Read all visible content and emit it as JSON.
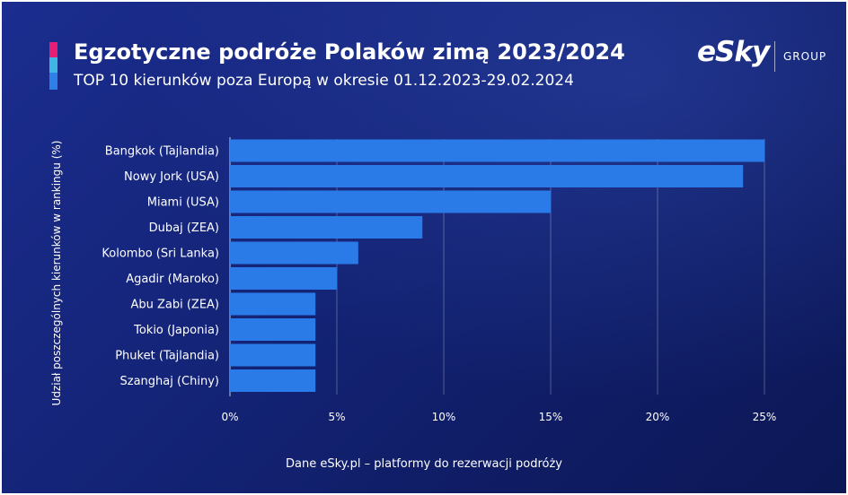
{
  "header": {
    "title": "Egzotyczne podróże Polaków zimą 2023/2024",
    "subtitle": "TOP 10 kierunków poza Europą w okresie 01.12.2023-29.02.2024"
  },
  "logo": {
    "brand": "eSky",
    "group": "GROUP"
  },
  "footer": {
    "source": "Dane eSky.pl – platformy do rezerwacji podróży"
  },
  "colors": {
    "bar": "#2a7ae8",
    "accent_pink": "#e91e73",
    "accent_cyan": "#3fb7e3",
    "accent_blue": "#2f7fe8",
    "background": "#152679"
  },
  "chart_data": {
    "type": "bar",
    "orientation": "horizontal",
    "title": "Egzotyczne podróże Polaków zimą 2023/2024",
    "subtitle": "TOP 10 kierunków poza Europą w okresie 01.12.2023-29.02.2024",
    "xlabel": "",
    "ylabel": "Udział poszczególnych kierunków w rankingu (%)",
    "categories": [
      "Bangkok (Tajlandia)",
      "Nowy Jork (USA)",
      "Miami (USA)",
      "Dubaj (ZEA)",
      "Kolombo (Sri Lanka)",
      "Agadir (Maroko)",
      "Abu Zabi (ZEA)",
      "Tokio (Japonia)",
      "Phuket (Tajlandia)",
      "Szanghaj (Chiny)"
    ],
    "values": [
      25,
      24,
      15,
      9,
      6,
      5,
      4,
      4,
      4,
      4
    ],
    "xlim": [
      0,
      25
    ],
    "xticks": [
      0,
      5,
      10,
      15,
      20,
      25
    ],
    "xtick_labels": [
      "0%",
      "5%",
      "10%",
      "15%",
      "20%",
      "25%"
    ],
    "grid": "vertical"
  }
}
